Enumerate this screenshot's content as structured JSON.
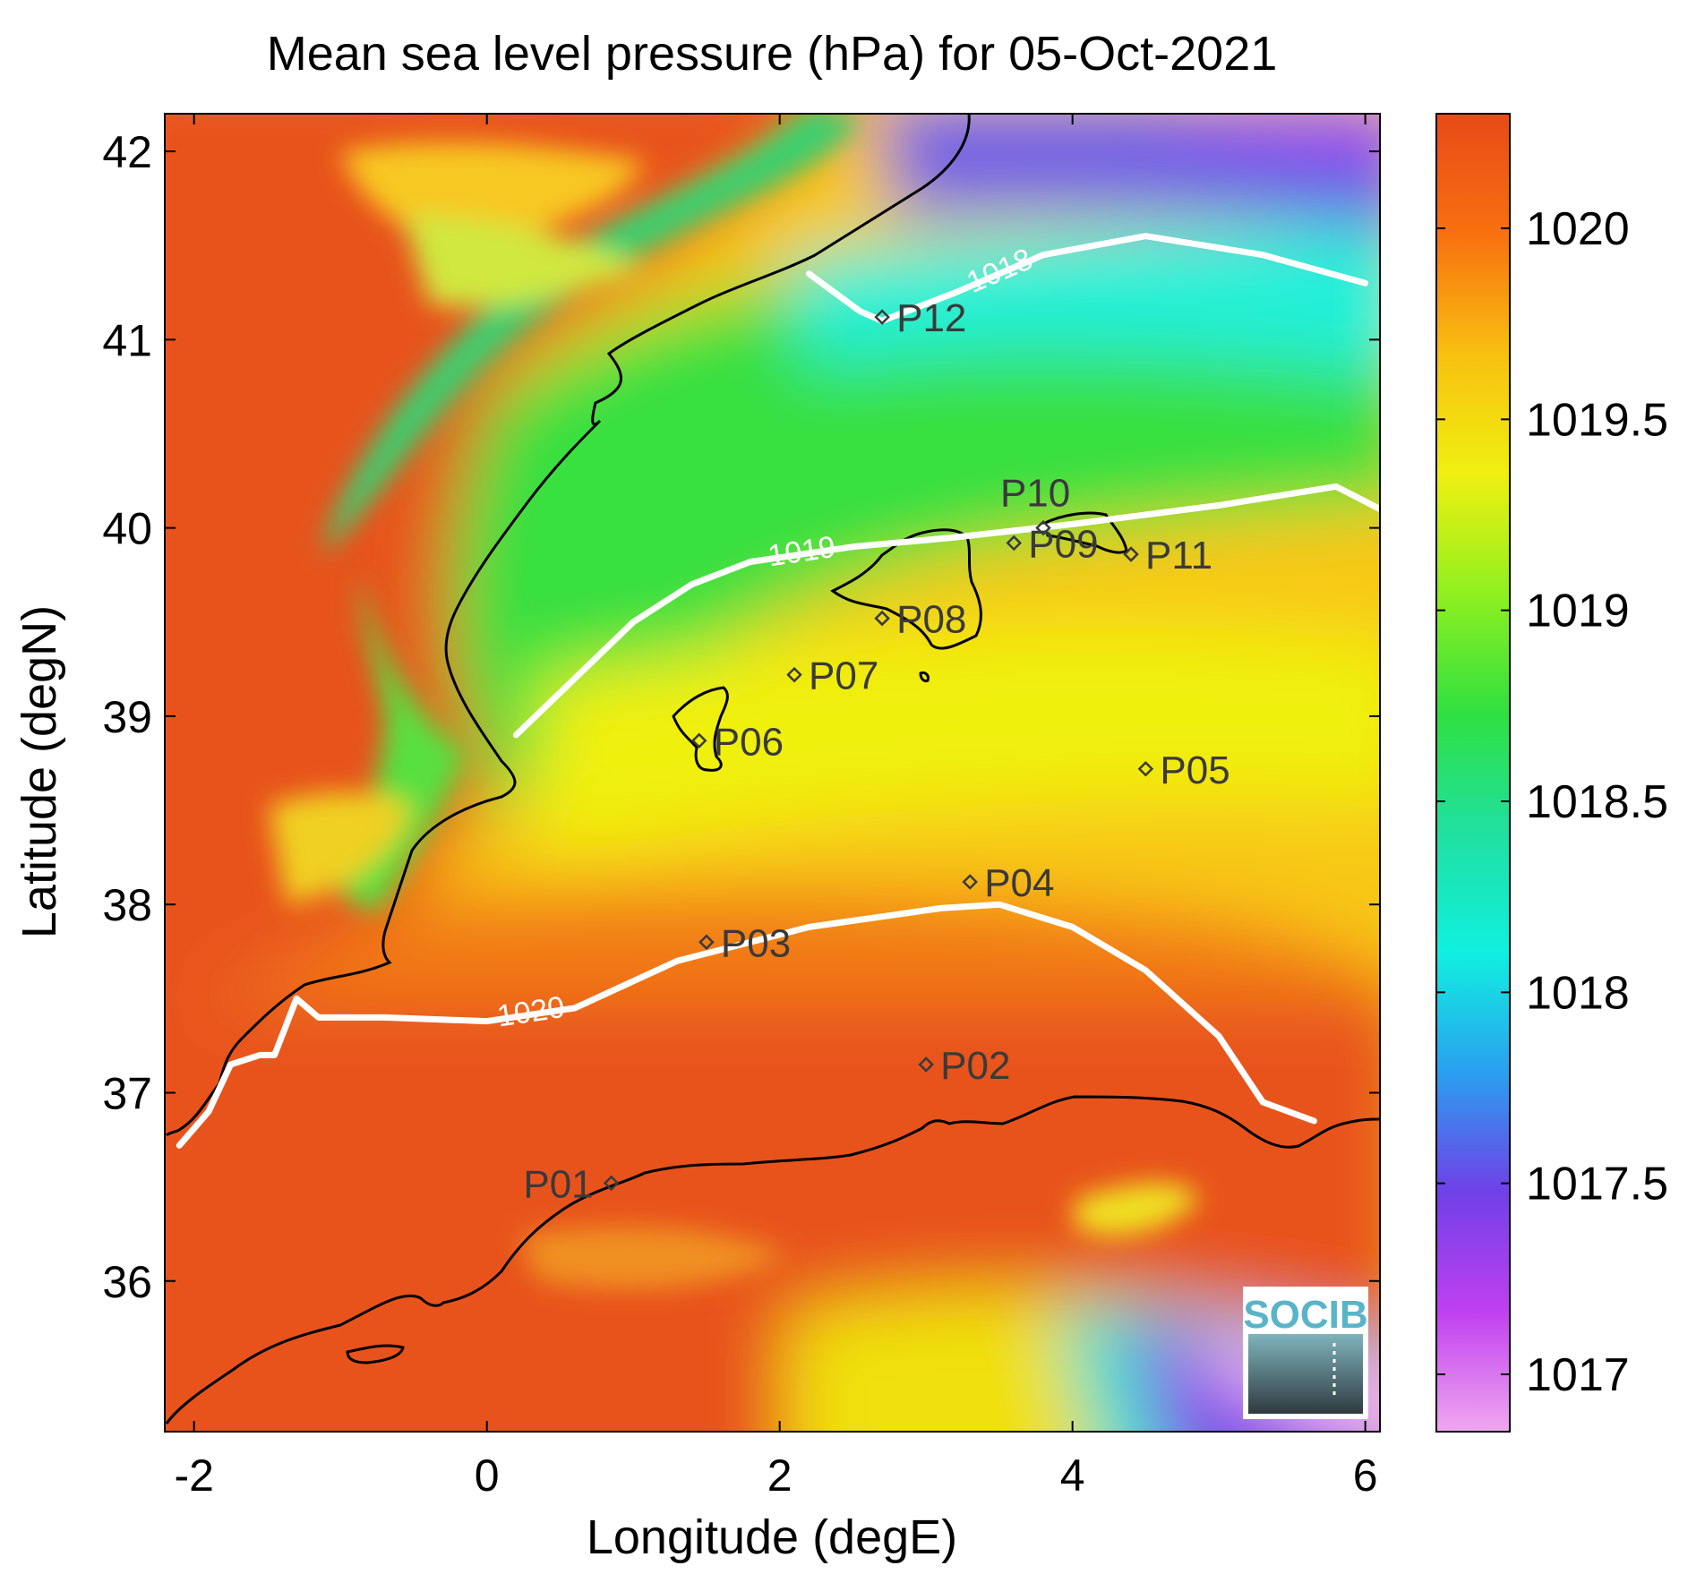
{
  "chart_data": {
    "type": "heatmap",
    "title": "Mean sea level pressure (hPa) for 05-Oct-2021",
    "xlabel": "Longitude (degE)",
    "ylabel": "Latitude (degN)",
    "xlim": [
      -2.2,
      6.1
    ],
    "ylim": [
      35.2,
      42.2
    ],
    "x_ticks": [
      -2,
      0,
      2,
      4,
      6
    ],
    "y_ticks": [
      36,
      37,
      38,
      39,
      40,
      41,
      42
    ],
    "colorbar": {
      "clim": [
        1016.85,
        1020.3
      ],
      "ticks": [
        1017,
        1017.5,
        1018,
        1018.5,
        1019,
        1019.5,
        1020
      ],
      "tick_labels": [
        "1017",
        "1017.5",
        "1018",
        "1018.5",
        "1019",
        "1019.5",
        "1020"
      ],
      "colors": [
        "#f0a8f0",
        "#c040f0",
        "#7040e8",
        "#2aa0f0",
        "#10f0e0",
        "#20e0a0",
        "#30e040",
        "#90f020",
        "#f0f010",
        "#f8c010",
        "#f87010",
        "#e84a18"
      ]
    },
    "contours": [
      {
        "level": 1018,
        "label": "1018",
        "points": [
          [
            2.2,
            41.35
          ],
          [
            2.55,
            41.15
          ],
          [
            2.7,
            41.1
          ],
          [
            3.2,
            41.25
          ],
          [
            3.8,
            41.45
          ],
          [
            4.5,
            41.55
          ],
          [
            5.3,
            41.45
          ],
          [
            6.0,
            41.3
          ]
        ]
      },
      {
        "level": 1019,
        "label": "1019",
        "points": [
          [
            0.2,
            38.9
          ],
          [
            0.6,
            39.2
          ],
          [
            1.0,
            39.5
          ],
          [
            1.4,
            39.7
          ],
          [
            1.8,
            39.82
          ],
          [
            2.5,
            39.9
          ],
          [
            3.2,
            39.95
          ],
          [
            4.0,
            40.02
          ],
          [
            5.0,
            40.12
          ],
          [
            5.8,
            40.22
          ],
          [
            6.1,
            40.1
          ]
        ]
      },
      {
        "level": 1020,
        "label": "1020",
        "points": [
          [
            -2.1,
            36.72
          ],
          [
            -1.9,
            36.9
          ],
          [
            -1.75,
            37.15
          ],
          [
            -1.55,
            37.2
          ],
          [
            -1.45,
            37.2
          ],
          [
            -1.3,
            37.5
          ],
          [
            -1.15,
            37.4
          ],
          [
            -0.7,
            37.4
          ],
          [
            0.0,
            37.38
          ],
          [
            0.6,
            37.45
          ],
          [
            1.3,
            37.7
          ],
          [
            2.2,
            37.88
          ],
          [
            3.1,
            37.98
          ],
          [
            3.5,
            38.0
          ],
          [
            4.0,
            37.88
          ],
          [
            4.5,
            37.65
          ],
          [
            5.0,
            37.3
          ],
          [
            5.3,
            36.95
          ],
          [
            5.65,
            36.85
          ]
        ]
      }
    ],
    "stations": [
      {
        "name": "P01",
        "lon": 0.85,
        "lat": 36.52
      },
      {
        "name": "P02",
        "lon": 3.0,
        "lat": 37.15
      },
      {
        "name": "P03",
        "lon": 1.5,
        "lat": 37.8
      },
      {
        "name": "P04",
        "lon": 3.3,
        "lat": 38.12
      },
      {
        "name": "P05",
        "lon": 4.5,
        "lat": 38.72
      },
      {
        "name": "P06",
        "lon": 1.45,
        "lat": 38.87
      },
      {
        "name": "P07",
        "lon": 2.1,
        "lat": 39.22
      },
      {
        "name": "P08",
        "lon": 2.7,
        "lat": 39.52
      },
      {
        "name": "P09",
        "lon": 3.6,
        "lat": 39.92
      },
      {
        "name": "P10",
        "lon": 3.8,
        "lat": 40.0
      },
      {
        "name": "P11",
        "lon": 4.4,
        "lat": 39.86
      },
      {
        "name": "P12",
        "lon": 2.7,
        "lat": 41.12
      }
    ]
  },
  "logo": {
    "text": "SOCIB"
  }
}
